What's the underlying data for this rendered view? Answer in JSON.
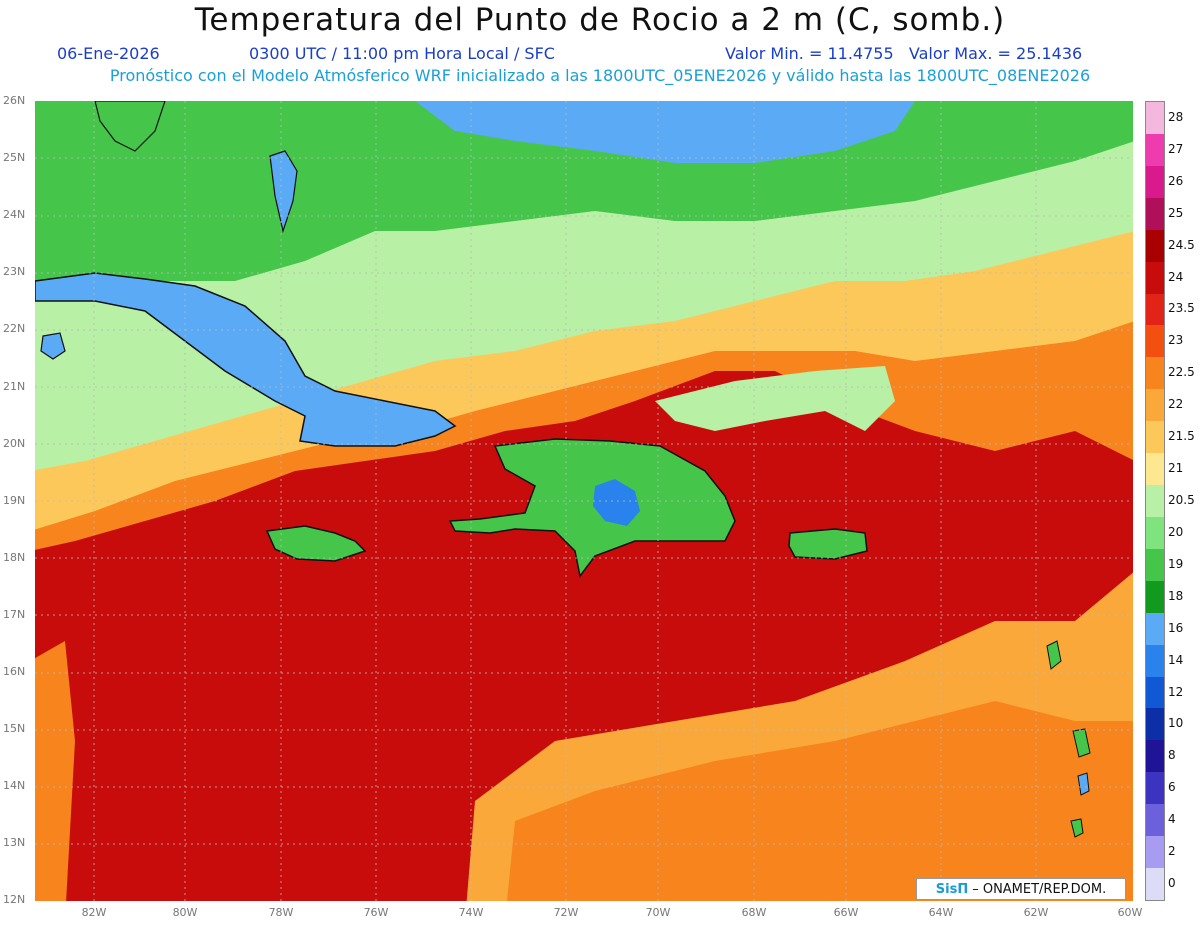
{
  "header": {
    "title": "Temperatura del Punto de Rocio a 2 m (C, somb.)",
    "date": "06-Ene-2026",
    "time": "0300 UTC / 11:00 pm Hora Local / SFC",
    "minmax": "Valor Min. = 11.4755   Valor Max. = 25.1436",
    "info": "Pronóstico con el Modelo Atmósferico WRF inicializado a las 1800UTC_05ENE2026 y válido hasta las  1800UTC_08ENE2026"
  },
  "axes": {
    "lat_labels": [
      "26N",
      "25N",
      "24N",
      "23N",
      "22N",
      "21N",
      "20N",
      "19N",
      "18N",
      "17N",
      "16N",
      "15N",
      "14N",
      "13N",
      "12N"
    ],
    "lon_labels": [
      "82W",
      "80W",
      "78W",
      "76W",
      "74W",
      "72W",
      "70W",
      "68W",
      "66W",
      "64W",
      "62W",
      "60W"
    ]
  },
  "colorbar": {
    "labels": [
      "28",
      "27",
      "26",
      "25",
      "24.5",
      "24",
      "23.5",
      "23",
      "22.5",
      "22",
      "21.5",
      "21",
      "20.5",
      "20",
      "19",
      "18",
      "16",
      "14",
      "12",
      "10",
      "8",
      "6",
      "4",
      "2",
      "0"
    ],
    "colors": [
      "#f4b8de",
      "#ee3cae",
      "#d81a8c",
      "#b0105a",
      "#a80000",
      "#c80c0c",
      "#e22318",
      "#f24f10",
      "#f7841c",
      "#fba83a",
      "#fcc85a",
      "#fde791",
      "#b8f0a6",
      "#7fe47e",
      "#45c64a",
      "#129a1e",
      "#5aaaf5",
      "#2a83ec",
      "#1058d4",
      "#0c2ea6",
      "#1f1496",
      "#3c34c0",
      "#6c60dc",
      "#a89cf2",
      "#dcdcf6"
    ]
  },
  "credit": {
    "logo": "SisΠ",
    "text": "– ONAMET/REP.DOM."
  },
  "colors": {
    "ocean_hot": "#c80c0c",
    "ocean_warm": "#f7841c",
    "land_cool": "#45c64a",
    "cold": "#5aaaf5",
    "coast": "#111111"
  }
}
